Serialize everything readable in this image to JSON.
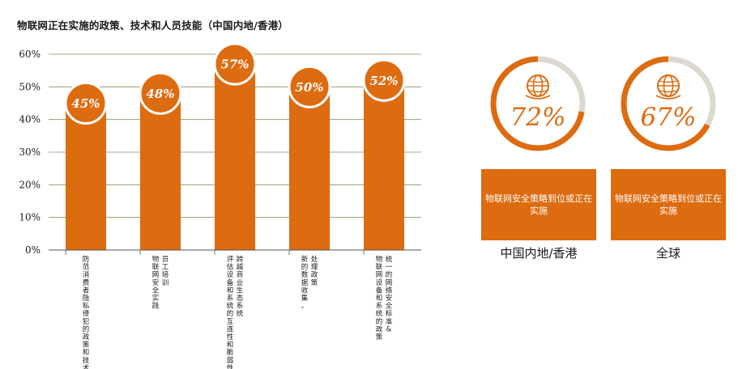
{
  "title": "物联网正在实施的政策、技术和人员技能（中国内地/香港）",
  "chart_data": {
    "type": "bar",
    "title": "物联网正在实施的政策、技术和人员技能（中国内地/香港）",
    "categories": [
      [
        "防范消费者隐私侵犯的政策和技术"
      ],
      [
        "物联网安全实践",
        "员工培训"
      ],
      [
        "评估设备和系统的互连性和脆弱性",
        "跨越商业生态系统"
      ],
      [
        "新的数据收集、",
        "处理政策"
      ],
      [
        "物联网设备和系统的政策",
        "统一的网络安全标准&"
      ]
    ],
    "values": [
      45,
      48,
      57,
      50,
      52
    ],
    "value_labels": [
      "45%",
      "48%",
      "57%",
      "50%",
      "52%"
    ],
    "ylim": [
      0,
      60
    ],
    "yticks": [
      "0%",
      "10%",
      "20%",
      "30%",
      "40%",
      "50%",
      "60%"
    ],
    "grid": true
  },
  "donuts": [
    {
      "value": 72,
      "label": "72%",
      "box_text": "物联网安全策略到位或正在实施",
      "region": "中国内地/香港",
      "icon": "globe-icon"
    },
    {
      "value": 67,
      "label": "67%",
      "box_text": "物联网安全策略到位或正在实施",
      "region": "全球",
      "icon": "globe-icon"
    }
  ],
  "colors": {
    "accent": "#dd6b0f",
    "track": "#dcd8d0",
    "grid": "#8a8a66"
  }
}
